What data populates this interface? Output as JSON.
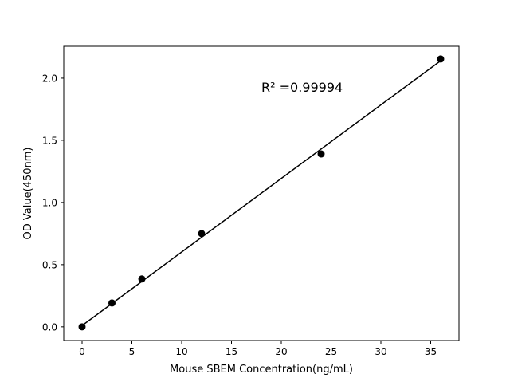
{
  "chart_data": {
    "type": "scatter",
    "title": "",
    "xlabel": "Mouse SBEM Concentration(ng/mL)",
    "ylabel": "OD Value(450nm)",
    "xlim": [
      -1.84,
      37.84
    ],
    "ylim": [
      -0.11,
      2.256
    ],
    "xticks": [
      0,
      5,
      10,
      15,
      20,
      25,
      30,
      35
    ],
    "yticks": [
      0.0,
      0.5,
      1.0,
      1.5,
      2.0
    ],
    "ytick_labels": [
      "0.0",
      "0.5",
      "1.0",
      "1.5",
      "2.0"
    ],
    "grid": false,
    "points": {
      "x": [
        0,
        3,
        6,
        12,
        24,
        36
      ],
      "y": [
        0.0,
        0.192,
        0.385,
        0.75,
        1.39,
        2.154
      ]
    },
    "fit_line": {
      "x": [
        0,
        36
      ],
      "y": [
        0.01,
        2.14
      ]
    },
    "annotation": "R² =0.99994",
    "annotation_position": [
      18,
      1.93
    ],
    "colors": {
      "points": "#000000",
      "line": "#000000"
    }
  }
}
